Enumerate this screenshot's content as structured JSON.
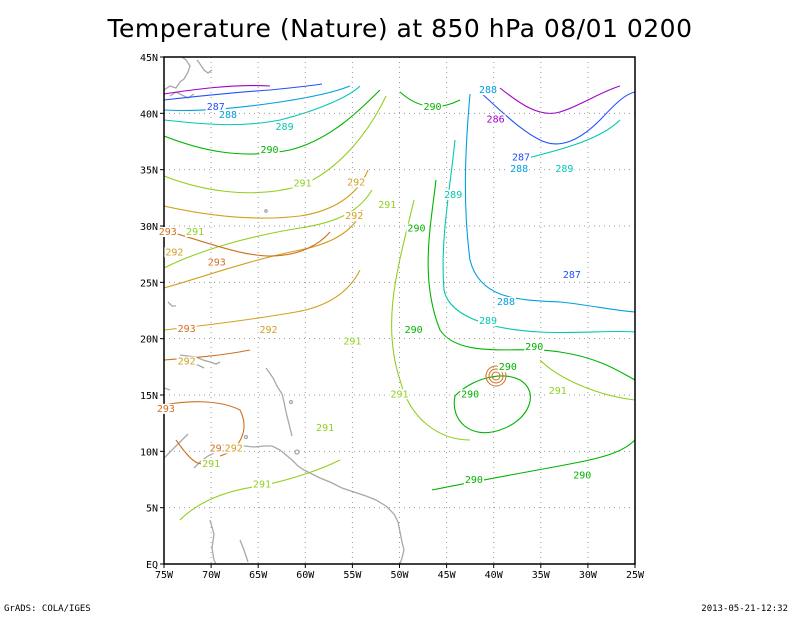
{
  "title": "Temperature (Nature) at 850 hPa 08/01 0200",
  "footer": {
    "credit": "GrADS: COLA/IGES",
    "timestamp": "2013-05-21-12:32"
  },
  "map": {
    "lon_range": [
      -75,
      -25
    ],
    "lat_range": [
      0,
      45
    ],
    "lon_ticks": [
      {
        "value": -75,
        "label": "75W"
      },
      {
        "value": -70,
        "label": "70W"
      },
      {
        "value": -65,
        "label": "65W"
      },
      {
        "value": -60,
        "label": "60W"
      },
      {
        "value": -55,
        "label": "55W"
      },
      {
        "value": -50,
        "label": "50W"
      },
      {
        "value": -45,
        "label": "45W"
      },
      {
        "value": -40,
        "label": "40W"
      },
      {
        "value": -35,
        "label": "35W"
      },
      {
        "value": -30,
        "label": "30W"
      },
      {
        "value": -25,
        "label": "25W"
      }
    ],
    "lat_ticks": [
      {
        "value": 0,
        "label": "EQ"
      },
      {
        "value": 5,
        "label": "5N"
      },
      {
        "value": 10,
        "label": "10N"
      },
      {
        "value": 15,
        "label": "15N"
      },
      {
        "value": 20,
        "label": "20N"
      },
      {
        "value": 25,
        "label": "25N"
      },
      {
        "value": 30,
        "label": "30N"
      },
      {
        "value": 35,
        "label": "35N"
      },
      {
        "value": 40,
        "label": "40N"
      },
      {
        "value": 45,
        "label": "45N"
      }
    ],
    "grid": true,
    "level_colors": {
      "286": "#a000c8",
      "287": "#2050ff",
      "288": "#00a0e0",
      "289": "#00c8b0",
      "290": "#00b400",
      "291": "#90d020",
      "292": "#d0a020",
      "293": "#d07020"
    },
    "contour_labels": [
      {
        "text": "288",
        "lon": -40.6,
        "lat": 41.8
      },
      {
        "text": "290",
        "lon": -46.5,
        "lat": 40.3
      },
      {
        "text": "286",
        "lon": -39.8,
        "lat": 39.2
      },
      {
        "text": "287",
        "lon": -69.5,
        "lat": 40.3
      },
      {
        "text": "288",
        "lon": -68.2,
        "lat": 39.6
      },
      {
        "text": "289",
        "lon": -62.2,
        "lat": 38.5
      },
      {
        "text": "290",
        "lon": -63.8,
        "lat": 36.5
      },
      {
        "text": "287",
        "lon": -37.1,
        "lat": 35.8
      },
      {
        "text": "288",
        "lon": -37.3,
        "lat": 34.8
      },
      {
        "text": "289",
        "lon": -32.5,
        "lat": 34.8
      },
      {
        "text": "291",
        "lon": -60.3,
        "lat": 33.5
      },
      {
        "text": "292",
        "lon": -54.6,
        "lat": 33.6
      },
      {
        "text": "289",
        "lon": -44.3,
        "lat": 32.5
      },
      {
        "text": "291",
        "lon": -51.3,
        "lat": 31.6
      },
      {
        "text": "292",
        "lon": -54.8,
        "lat": 30.6
      },
      {
        "text": "290",
        "lon": -48.2,
        "lat": 29.5
      },
      {
        "text": "293",
        "lon": -74.6,
        "lat": 29.2
      },
      {
        "text": "291",
        "lon": -71.7,
        "lat": 29.2
      },
      {
        "text": "292",
        "lon": -73.9,
        "lat": 27.4
      },
      {
        "text": "293",
        "lon": -69.4,
        "lat": 26.5
      },
      {
        "text": "287",
        "lon": -31.7,
        "lat": 25.4
      },
      {
        "text": "288",
        "lon": -38.7,
        "lat": 23.0
      },
      {
        "text": "289",
        "lon": -40.6,
        "lat": 21.3
      },
      {
        "text": "290",
        "lon": -48.5,
        "lat": 20.5
      },
      {
        "text": "293",
        "lon": -72.6,
        "lat": 20.6
      },
      {
        "text": "292",
        "lon": -63.9,
        "lat": 20.5
      },
      {
        "text": "291",
        "lon": -55.0,
        "lat": 19.5
      },
      {
        "text": "290",
        "lon": -35.7,
        "lat": 19.0
      },
      {
        "text": "292",
        "lon": -72.6,
        "lat": 17.7
      },
      {
        "text": "290",
        "lon": -38.5,
        "lat": 17.2
      },
      {
        "text": "291",
        "lon": -50.0,
        "lat": 14.8
      },
      {
        "text": "290",
        "lon": -42.5,
        "lat": 14.8
      },
      {
        "text": "291",
        "lon": -33.2,
        "lat": 15.1
      },
      {
        "text": "293",
        "lon": -74.8,
        "lat": 13.5
      },
      {
        "text": "291",
        "lon": -57.9,
        "lat": 11.8
      },
      {
        "text": "293",
        "lon": -69.2,
        "lat": 10.0
      },
      {
        "text": "292",
        "lon": -67.6,
        "lat": 10.0
      },
      {
        "text": "291",
        "lon": -70.0,
        "lat": 8.6
      },
      {
        "text": "290",
        "lon": -42.1,
        "lat": 7.2
      },
      {
        "text": "290",
        "lon": -30.6,
        "lat": 7.6
      },
      {
        "text": "291",
        "lon": -64.6,
        "lat": 6.8
      }
    ]
  }
}
